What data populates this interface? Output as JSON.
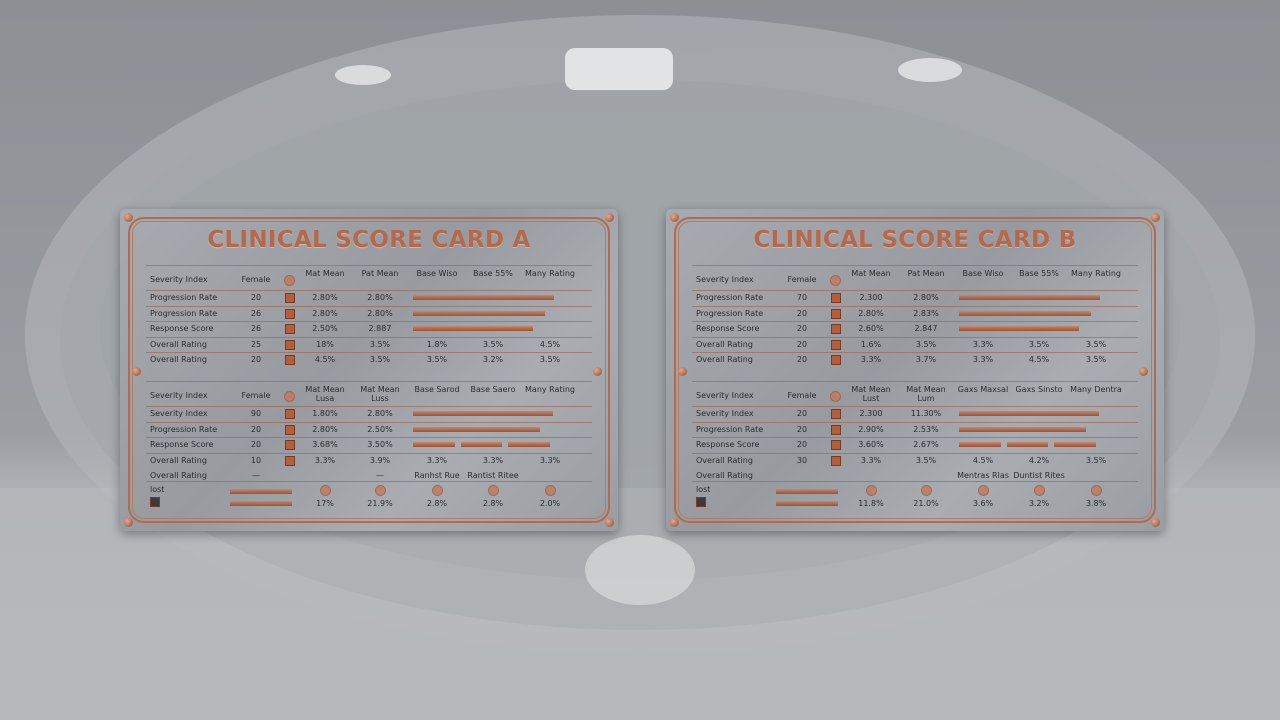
{
  "cards": [
    {
      "title": "CLINICAL SCORE CARD A",
      "tables": [
        {
          "header": [
            "Severity Index",
            "Female",
            "Mat Mean",
            "Pat Mean",
            "Base Wiso",
            "Base 55%",
            "Many Rating"
          ],
          "rows": [
            [
              "Progression Rate",
              "20",
              "2.80%",
              "2.80%"
            ],
            [
              "Progression Rate",
              "26",
              "2.80%",
              "2.80%"
            ],
            [
              "Response Score",
              "26",
              "2.50%",
              "2.887"
            ],
            [
              "Overall Rating",
              "25",
              "18%",
              "3.5%",
              "1.8%",
              "3.5%",
              "4.5%"
            ],
            [
              "Overall Rating",
              "20",
              "4.5%",
              "3.5%",
              "3.5%",
              "3.2%",
              "3.5%"
            ]
          ]
        },
        {
          "header": [
            "Severity Index",
            "Female",
            "Mat Mean Lusa",
            "Mat Mean Luss",
            "Base Sarod",
            "Base Saero",
            "Many Rating"
          ],
          "rows": [
            [
              "Severity Index",
              "90",
              "1.80%",
              "2.80%"
            ],
            [
              "Progression Rate",
              "20",
              "2.80%",
              "2.50%"
            ],
            [
              "Response Score",
              "20",
              "3.68%",
              "3.50%"
            ],
            [
              "Overall Rating",
              "10",
              "3.3%",
              "3.9%",
              "3.3%",
              "3.3%",
              "3.3%"
            ]
          ],
          "note_row": {
            "label": "Overall Rating",
            "dashes": [
              "—",
              "—"
            ],
            "notes": [
              "Ranhst Rue",
              "Rantist Ritee"
            ]
          }
        }
      ],
      "footer": {
        "label": "lost",
        "values": [
          "17%",
          "21.9%",
          "2.8%",
          "2.8%",
          "2.0%"
        ]
      }
    },
    {
      "title": "CLINICAL SCORE CARD B",
      "tables": [
        {
          "header": [
            "Severity Index",
            "Female",
            "Mat Mean",
            "Pat Mean",
            "Base Wiso",
            "Base 55%",
            "Many Rating"
          ],
          "rows": [
            [
              "Progression Rate",
              "70",
              "2.300",
              "2.80%"
            ],
            [
              "Progression Rate",
              "20",
              "2.80%",
              "2.83%"
            ],
            [
              "Response Score",
              "20",
              "2.60%",
              "2.847"
            ],
            [
              "Overall Rating",
              "20",
              "1.6%",
              "3.5%",
              "3.3%",
              "3.5%",
              "3.5%"
            ],
            [
              "Overall Rating",
              "20",
              "3.3%",
              "3.7%",
              "3.3%",
              "4.5%",
              "3.5%"
            ]
          ]
        },
        {
          "header": [
            "Severity Index",
            "Female",
            "Mat Mean Lust",
            "Mat Mean Lum",
            "Gaxs Maxsal",
            "Gaxs Sinsto",
            "Many Dentra"
          ],
          "rows": [
            [
              "Severity Index",
              "20",
              "2.300",
              "11.30%"
            ],
            [
              "Progression Rate",
              "20",
              "2.90%",
              "2.53%"
            ],
            [
              "Response Score",
              "20",
              "3.60%",
              "2.67%"
            ],
            [
              "Overall Rating",
              "30",
              "3.3%",
              "3.5%",
              "4.5%",
              "4.2%",
              "3.5%"
            ]
          ],
          "note_row": {
            "label": "Overall Rating",
            "notes": [
              "Mentras Rlas",
              "Duntist Rites"
            ]
          }
        }
      ],
      "footer": {
        "label": "lost",
        "values": [
          "11.8%",
          "21.0%",
          "3.6%",
          "3.2%",
          "3.8%"
        ]
      }
    }
  ]
}
